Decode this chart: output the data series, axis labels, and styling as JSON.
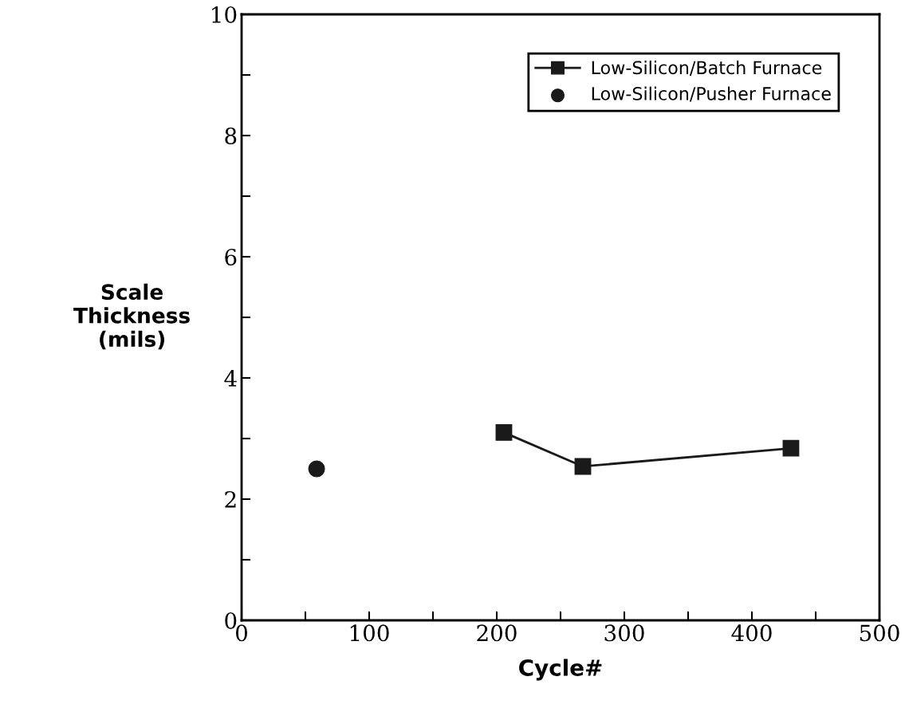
{
  "chart_data": {
    "type": "line",
    "xlabel": "Cycle#",
    "ylabel": "Scale\nThickness\n(mils)",
    "xlim": [
      0,
      500
    ],
    "ylim": [
      0,
      10
    ],
    "xticks": [
      0,
      {
        "value": 50,
        "label": null
      },
      100,
      {
        "value": 150,
        "label": null
      },
      200,
      {
        "value": 250,
        "label": null
      },
      300,
      {
        "value": 350,
        "label": null
      },
      400,
      {
        "value": 450,
        "label": null
      },
      500
    ],
    "yticks": [
      0,
      {
        "value": 1,
        "label": null
      },
      2,
      {
        "value": 3,
        "label": null
      },
      4,
      {
        "value": 5,
        "label": null
      },
      6,
      {
        "value": 7,
        "label": null
      },
      8,
      {
        "value": 9,
        "label": null
      },
      10
    ],
    "series": [
      {
        "name": "Low-Silicon/Batch Furnace",
        "marker": "square",
        "color": "#1a1a1a",
        "x": [
          205.6,
          267.5,
          430.6
        ],
        "values": [
          3.1,
          2.54,
          2.84
        ]
      },
      {
        "name": "Low-Silicon/Pusher Furnace",
        "type": "scatter",
        "marker": "circle",
        "color": "#1a1a1a",
        "x": [
          58.8
        ],
        "values": [
          2.5
        ]
      }
    ],
    "legend": "top right",
    "grid": false
  }
}
